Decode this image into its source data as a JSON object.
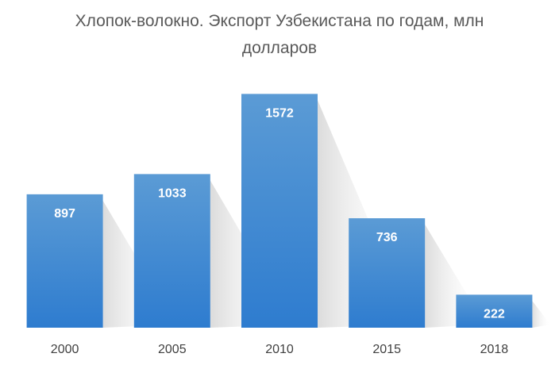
{
  "chart_data": {
    "type": "bar",
    "title_line1": "Хлопок-волокно. Экспорт Узбекистана по годам, млн",
    "title_line2": "долларов",
    "categories": [
      "2000",
      "2005",
      "2010",
      "2015",
      "2018"
    ],
    "values": [
      897,
      1033,
      1572,
      736,
      222
    ],
    "data_labels": [
      "897",
      "1033",
      "1572",
      "736",
      "222"
    ],
    "xlabel": "",
    "ylabel": "",
    "ylim": [
      0,
      1830
    ],
    "grid": false,
    "legend": "none",
    "colors": {
      "bar_top": "#5b9bd5",
      "bar_bottom": "#2e7ccf",
      "label": "#ffffff",
      "title": "#595959",
      "axis_text": "#404040"
    }
  }
}
